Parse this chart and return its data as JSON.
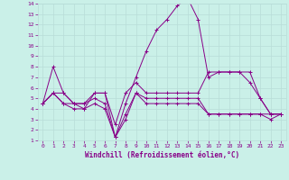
{
  "xlabel": "Windchill (Refroidissement éolien,°C)",
  "bg_color": "#caf0e8",
  "grid_color": "#b8ddd8",
  "line_color": "#880088",
  "xlim": [
    -0.5,
    23.5
  ],
  "ylim": [
    1,
    14
  ],
  "yticks": [
    1,
    2,
    3,
    4,
    5,
    6,
    7,
    8,
    9,
    10,
    11,
    12,
    13,
    14
  ],
  "xticks": [
    0,
    1,
    2,
    3,
    4,
    5,
    6,
    7,
    8,
    9,
    10,
    11,
    12,
    13,
    14,
    15,
    16,
    17,
    18,
    19,
    20,
    21,
    22,
    23
  ],
  "lines": [
    [
      4.5,
      8.0,
      5.5,
      4.5,
      4.5,
      5.0,
      4.5,
      1.3,
      4.5,
      7.0,
      9.5,
      11.5,
      12.5,
      13.8,
      14.5,
      12.5,
      7.0,
      7.5,
      7.5,
      7.5,
      6.5,
      5.0,
      3.5,
      3.5
    ],
    [
      4.5,
      5.5,
      5.5,
      4.5,
      4.5,
      5.5,
      5.5,
      2.5,
      5.5,
      6.5,
      5.5,
      5.5,
      5.5,
      5.5,
      5.5,
      5.5,
      7.5,
      7.5,
      7.5,
      7.5,
      7.5,
      5.0,
      3.5,
      3.5
    ],
    [
      4.5,
      5.5,
      4.5,
      4.0,
      4.0,
      4.5,
      4.0,
      1.3,
      3.5,
      5.5,
      4.5,
      4.5,
      4.5,
      4.5,
      4.5,
      4.5,
      3.5,
      3.5,
      3.5,
      3.5,
      3.5,
      3.5,
      3.5,
      3.5
    ],
    [
      4.5,
      5.5,
      4.5,
      4.5,
      4.0,
      5.5,
      5.5,
      1.3,
      3.0,
      5.5,
      5.0,
      5.0,
      5.0,
      5.0,
      5.0,
      5.0,
      3.5,
      3.5,
      3.5,
      3.5,
      3.5,
      3.5,
      3.0,
      3.5
    ]
  ]
}
